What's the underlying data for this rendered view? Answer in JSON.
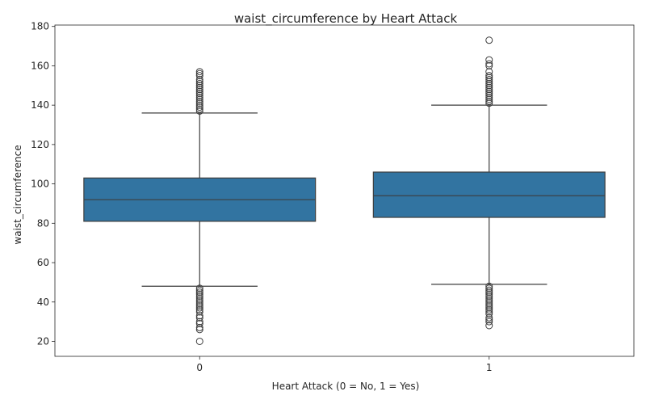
{
  "chart_data": {
    "type": "box",
    "title": "waist_circumference by Heart Attack",
    "xlabel": "Heart Attack (0 = No, 1 = Yes)",
    "ylabel": "waist_circumference",
    "categories": [
      "0",
      "1"
    ],
    "ylim": [
      12.4,
      180.7
    ],
    "yticks": [
      20,
      40,
      60,
      80,
      100,
      120,
      140,
      160,
      180
    ],
    "grid": false,
    "box_color": "#3274a1",
    "line_color": "#3d3d3d",
    "boxes": [
      {
        "category": "0",
        "whisker_low": 48,
        "q1": 81,
        "median": 92,
        "q3": 103,
        "whisker_high": 136,
        "outliers_low": [
          20,
          26,
          27,
          29,
          30,
          32,
          33,
          35,
          36,
          37,
          38,
          39,
          40,
          41,
          42,
          43,
          44,
          45,
          46,
          47
        ],
        "outliers_high": [
          137,
          138,
          139,
          140,
          141,
          142,
          143,
          144,
          145,
          146,
          147,
          148,
          149,
          150,
          151,
          152,
          153,
          155,
          156,
          157
        ]
      },
      {
        "category": "1",
        "whisker_low": 49,
        "q1": 83,
        "median": 94,
        "q3": 106,
        "whisker_high": 140,
        "outliers_low": [
          28,
          30,
          31,
          32,
          34,
          35,
          36,
          37,
          38,
          39,
          40,
          41,
          42,
          43,
          44,
          45,
          46,
          47,
          48
        ],
        "outliers_high": [
          141,
          142,
          143,
          144,
          145,
          146,
          147,
          148,
          149,
          150,
          151,
          152,
          153,
          154,
          155,
          157,
          160,
          161,
          163,
          173
        ]
      }
    ]
  }
}
